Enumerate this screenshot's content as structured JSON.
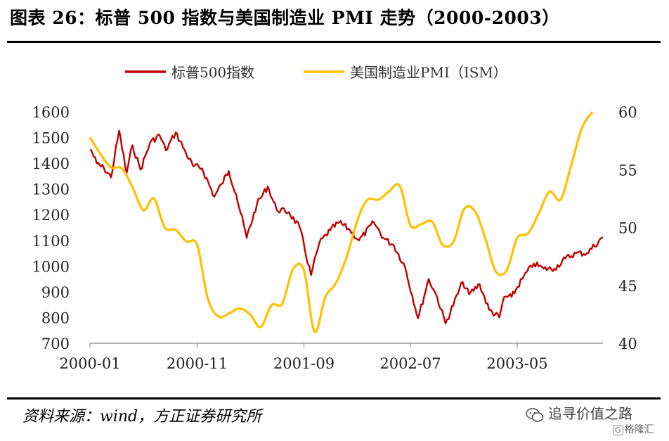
{
  "title": "图表 26：标普 500 指数与美国制造业 PMI 走势（2000-2003）",
  "source": "资料来源：wind，方正证券研究所",
  "watermark": "追寻价值之路",
  "brand": "格隆汇",
  "chart_data": {
    "type": "line",
    "legend_position": "top",
    "grid": false,
    "x_ticks": [
      "2000-01",
      "2000-11",
      "2001-09",
      "2002-07",
      "2003-05"
    ],
    "x_range": [
      "2000-01",
      "2003-12"
    ],
    "y_left": {
      "range": [
        700,
        1600
      ],
      "ticks": [
        700,
        800,
        900,
        1000,
        1100,
        1200,
        1300,
        1400,
        1500,
        1600
      ]
    },
    "y_right": {
      "range": [
        40,
        60
      ],
      "ticks": [
        40,
        45,
        50,
        55,
        60
      ]
    },
    "series": [
      {
        "name": "标普500指数",
        "axis": "left",
        "color": "#c00000",
        "points": [
          [
            "2000-01-03",
            1455
          ],
          [
            "2000-01-20",
            1400
          ],
          [
            "2000-02-10",
            1380
          ],
          [
            "2000-03-01",
            1345
          ],
          [
            "2000-03-24",
            1527
          ],
          [
            "2000-04-14",
            1360
          ],
          [
            "2000-05-01",
            1470
          ],
          [
            "2000-05-24",
            1375
          ],
          [
            "2000-06-20",
            1480
          ],
          [
            "2000-07-17",
            1510
          ],
          [
            "2000-08-04",
            1450
          ],
          [
            "2000-09-01",
            1520
          ],
          [
            "2000-09-30",
            1440
          ],
          [
            "2000-10-20",
            1390
          ],
          [
            "2000-11-15",
            1380
          ],
          [
            "2000-12-20",
            1270
          ],
          [
            "2001-01-10",
            1320
          ],
          [
            "2001-01-30",
            1370
          ],
          [
            "2001-02-20",
            1280
          ],
          [
            "2001-03-22",
            1110
          ],
          [
            "2001-04-20",
            1240
          ],
          [
            "2001-05-21",
            1310
          ],
          [
            "2001-06-15",
            1220
          ],
          [
            "2001-07-20",
            1210
          ],
          [
            "2001-08-20",
            1150
          ],
          [
            "2001-09-21",
            965
          ],
          [
            "2001-10-15",
            1090
          ],
          [
            "2001-11-15",
            1140
          ],
          [
            "2001-12-10",
            1170
          ],
          [
            "2002-01-10",
            1140
          ],
          [
            "2002-02-05",
            1100
          ],
          [
            "2002-03-19",
            1170
          ],
          [
            "2002-04-15",
            1110
          ],
          [
            "2002-05-15",
            1080
          ],
          [
            "2002-06-15",
            1000
          ],
          [
            "2002-07-23",
            797
          ],
          [
            "2002-08-22",
            950
          ],
          [
            "2002-09-15",
            880
          ],
          [
            "2002-10-09",
            777
          ],
          [
            "2002-11-27",
            938
          ],
          [
            "2002-12-15",
            890
          ],
          [
            "2003-01-14",
            930
          ],
          [
            "2003-02-10",
            830
          ],
          [
            "2003-03-11",
            800
          ],
          [
            "2003-03-25",
            880
          ],
          [
            "2003-04-15",
            880
          ],
          [
            "2003-05-15",
            950
          ],
          [
            "2003-06-17",
            1010
          ],
          [
            "2003-07-15",
            990
          ],
          [
            "2003-08-15",
            990
          ],
          [
            "2003-09-15",
            1030
          ],
          [
            "2003-10-15",
            1050
          ],
          [
            "2003-11-15",
            1050
          ],
          [
            "2003-12-31",
            1112
          ]
        ]
      },
      {
        "name": "美国制造业PMI（ISM）",
        "axis": "right",
        "color": "#ffc000",
        "points": [
          [
            "2000-01",
            57.8
          ],
          [
            "2000-02",
            56.3
          ],
          [
            "2000-03",
            55.2
          ],
          [
            "2000-04",
            55.1
          ],
          [
            "2000-05",
            53.5
          ],
          [
            "2000-06",
            51.5
          ],
          [
            "2000-07",
            52.5
          ],
          [
            "2000-08",
            50.0
          ],
          [
            "2000-09",
            49.8
          ],
          [
            "2000-10",
            48.8
          ],
          [
            "2000-11",
            48.5
          ],
          [
            "2000-12",
            43.9
          ],
          [
            "2001-01",
            42.3
          ],
          [
            "2001-02",
            42.6
          ],
          [
            "2001-03",
            43.0
          ],
          [
            "2001-04",
            42.5
          ],
          [
            "2001-05",
            41.4
          ],
          [
            "2001-06",
            43.3
          ],
          [
            "2001-07",
            43.4
          ],
          [
            "2001-08",
            46.4
          ],
          [
            "2001-09",
            46.3
          ],
          [
            "2001-10",
            41.0
          ],
          [
            "2001-11",
            44.0
          ],
          [
            "2001-12",
            45.2
          ],
          [
            "2002-01",
            47.5
          ],
          [
            "2002-02",
            50.7
          ],
          [
            "2002-03",
            52.4
          ],
          [
            "2002-04",
            52.4
          ],
          [
            "2002-05",
            53.1
          ],
          [
            "2002-06",
            53.6
          ],
          [
            "2002-07",
            50.2
          ],
          [
            "2002-08",
            50.3
          ],
          [
            "2002-09",
            50.5
          ],
          [
            "2002-10",
            48.5
          ],
          [
            "2002-11",
            48.8
          ],
          [
            "2002-12",
            51.6
          ],
          [
            "2003-01",
            51.4
          ],
          [
            "2003-02",
            48.9
          ],
          [
            "2003-03",
            46.2
          ],
          [
            "2003-04",
            46.3
          ],
          [
            "2003-05",
            49.1
          ],
          [
            "2003-06",
            49.5
          ],
          [
            "2003-07",
            51.2
          ],
          [
            "2003-08",
            53.1
          ],
          [
            "2003-09",
            52.4
          ],
          [
            "2003-10",
            55.3
          ],
          [
            "2003-11",
            58.6
          ],
          [
            "2003-12",
            60.0
          ]
        ]
      }
    ]
  }
}
